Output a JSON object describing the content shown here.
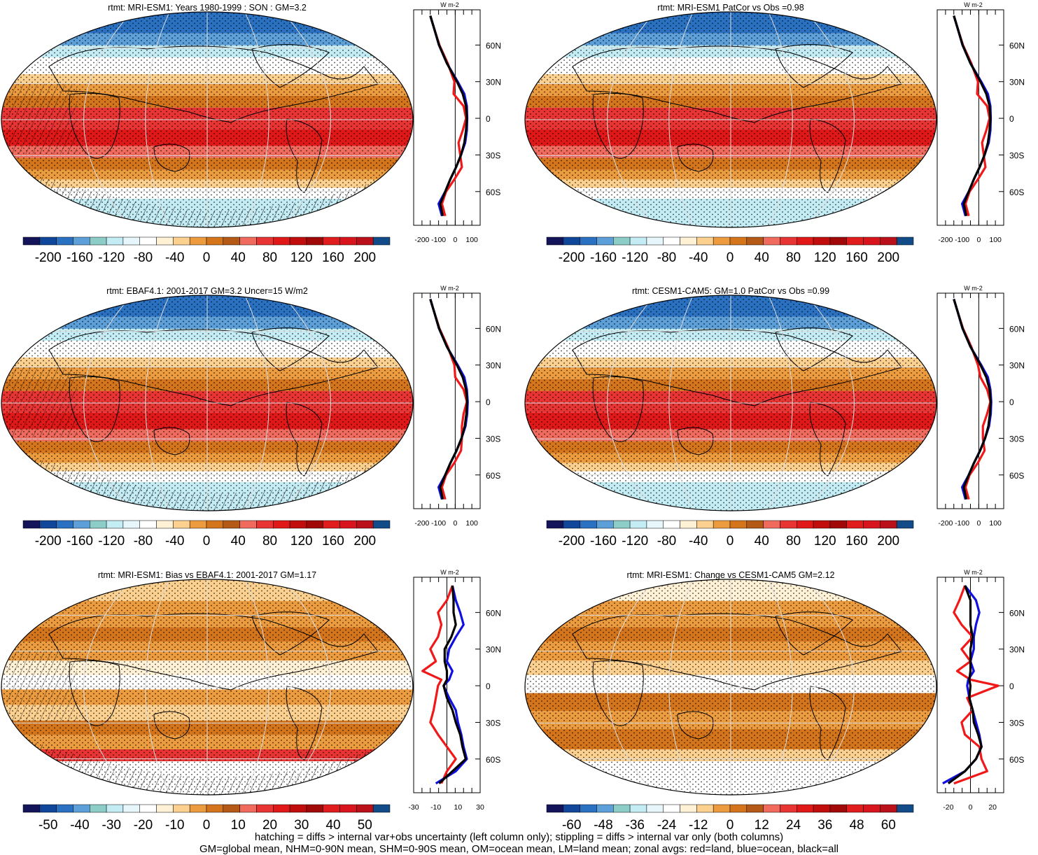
{
  "colorbar_palette": [
    "#14145a",
    "#10479a",
    "#2a71c2",
    "#5c9fd9",
    "#8ccdc7",
    "#c4ecf4",
    "#e6f6fa",
    "#ffffff",
    "#fff1d6",
    "#fcd08f",
    "#ec9c3e",
    "#d4751c",
    "#b45a16",
    "#f06a5e",
    "#e93434",
    "#e11818",
    "#c20d0d",
    "#a10808",
    "#e01c1c",
    "#d8151c",
    "#ba1019",
    "#124c88"
  ],
  "line_colors": {
    "land": "#f01818",
    "ocean": "#1010e0",
    "all": "#000000"
  },
  "footer": {
    "line1": "hatching = diffs > internal var+obs uncertainty (left column only); stippling = diffs > internal var only (both columns)",
    "line2": "GM=global mean, NHM=0-90N mean, SHM=0-90S mean, OM=ocean mean, LM=land mean; zonal avgs: red=land, blue=ocean, black=all"
  },
  "chart_data": [
    {
      "type": "heatmap",
      "id": "p1",
      "title": "rtmt: MRI-ESM1: Years 1980-1999 : SON : GM=3.2",
      "field": "abs",
      "hatch": true,
      "colorbar_ticks": [
        "-200",
        "-160",
        "-120",
        "-80",
        "-40",
        "0",
        "40",
        "80",
        "120",
        "160",
        "200"
      ],
      "zonal": {
        "units": "W m-2",
        "lat_ticks": [
          "60N",
          "30N",
          "0",
          "30S",
          "60S"
        ],
        "x_ticks": [
          "-200",
          "-100",
          "0",
          "100"
        ],
        "xlim": [
          -250,
          150
        ],
        "lat": [
          84,
          75,
          60,
          45,
          30,
          20,
          10,
          0,
          -10,
          -20,
          -30,
          -40,
          -50,
          -60,
          -70,
          -80
        ],
        "series": [
          {
            "name": "land",
            "values": [
              -150,
              -130,
              -95,
              -45,
              -5,
              -10,
              50,
              65,
              45,
              20,
              30,
              40,
              -5,
              -55,
              -80,
              -60
            ]
          },
          {
            "name": "ocean",
            "values": [
              -150,
              -130,
              -98,
              -50,
              15,
              55,
              70,
              72,
              70,
              60,
              35,
              5,
              -30,
              -60,
              -100,
              -80
            ]
          },
          {
            "name": "all",
            "values": [
              -150,
              -130,
              -97,
              -50,
              10,
              45,
              65,
              70,
              65,
              55,
              35,
              5,
              -30,
              -60,
              -90,
              -75
            ]
          }
        ]
      }
    },
    {
      "type": "heatmap",
      "id": "p2",
      "title": "rtmt: MRI-ESM1 PatCor vs Obs =0.98",
      "field": "abs",
      "hatch": false,
      "colorbar_ticks": [
        "-200",
        "-160",
        "-120",
        "-80",
        "-40",
        "0",
        "40",
        "80",
        "120",
        "160",
        "200"
      ],
      "zonal": {
        "units": "W m-2",
        "lat_ticks": [
          "60N",
          "30N",
          "0",
          "30S",
          "60S"
        ],
        "x_ticks": [
          "-200",
          "-100",
          "0",
          "100"
        ],
        "xlim": [
          -250,
          150
        ],
        "lat": [
          84,
          75,
          60,
          45,
          30,
          20,
          10,
          0,
          -10,
          -20,
          -30,
          -40,
          -50,
          -60,
          -70,
          -80
        ],
        "series": [
          {
            "name": "land",
            "values": [
              -150,
              -130,
              -95,
              -45,
              -5,
              -10,
              50,
              65,
              45,
              20,
              30,
              40,
              -5,
              -55,
              -80,
              -60
            ]
          },
          {
            "name": "ocean",
            "values": [
              -150,
              -130,
              -98,
              -50,
              15,
              55,
              70,
              72,
              70,
              60,
              35,
              5,
              -30,
              -60,
              -100,
              -80
            ]
          },
          {
            "name": "all",
            "values": [
              -150,
              -130,
              -97,
              -50,
              10,
              45,
              65,
              70,
              65,
              55,
              35,
              5,
              -30,
              -60,
              -90,
              -75
            ]
          }
        ]
      }
    },
    {
      "type": "heatmap",
      "id": "p3",
      "title": "rtmt: EBAF4.1: 2001-2017 GM=3.2 Uncer=15 W/m2",
      "field": "abs",
      "hatch": true,
      "colorbar_ticks": [
        "-200",
        "-160",
        "-120",
        "-80",
        "-40",
        "0",
        "40",
        "80",
        "120",
        "160",
        "200"
      ],
      "zonal": {
        "units": "W m-2",
        "lat_ticks": [
          "60N",
          "30N",
          "0",
          "30S",
          "60S"
        ],
        "x_ticks": [
          "-200",
          "-100",
          "0",
          "100"
        ],
        "xlim": [
          -250,
          150
        ],
        "lat": [
          84,
          75,
          60,
          45,
          30,
          20,
          10,
          0,
          -10,
          -20,
          -30,
          -40,
          -50,
          -60,
          -70,
          -80
        ],
        "series": [
          {
            "name": "land",
            "values": [
              -150,
              -130,
              -95,
              -45,
              -5,
              0,
              50,
              70,
              50,
              40,
              40,
              35,
              -5,
              -55,
              -80,
              -60
            ]
          },
          {
            "name": "ocean",
            "values": [
              -150,
              -130,
              -98,
              -50,
              15,
              55,
              70,
              75,
              72,
              62,
              38,
              8,
              -28,
              -60,
              -100,
              -80
            ]
          },
          {
            "name": "all",
            "values": [
              -150,
              -130,
              -97,
              -50,
              10,
              45,
              65,
              72,
              67,
              58,
              38,
              8,
              -28,
              -60,
              -90,
              -75
            ]
          }
        ]
      }
    },
    {
      "type": "heatmap",
      "id": "p4",
      "title": "rtmt: CESM1-CAM5: GM=1.0 PatCor vs Obs =0.99",
      "field": "abs",
      "hatch": false,
      "colorbar_ticks": [
        "-200",
        "-160",
        "-120",
        "-80",
        "-40",
        "0",
        "40",
        "80",
        "120",
        "160",
        "200"
      ],
      "zonal": {
        "units": "W m-2",
        "lat_ticks": [
          "60N",
          "30N",
          "0",
          "30S",
          "60S"
        ],
        "x_ticks": [
          "-200",
          "-100",
          "0",
          "100"
        ],
        "xlim": [
          -250,
          150
        ],
        "lat": [
          84,
          75,
          60,
          45,
          30,
          20,
          10,
          0,
          -10,
          -20,
          -30,
          -40,
          -50,
          -60,
          -70,
          -80
        ],
        "series": [
          {
            "name": "land",
            "values": [
              -150,
              -130,
              -95,
              -45,
              -5,
              10,
              50,
              70,
              50,
              25,
              25,
              35,
              -5,
              -55,
              -80,
              -60
            ]
          },
          {
            "name": "ocean",
            "values": [
              -150,
              -130,
              -98,
              -50,
              15,
              55,
              70,
              75,
              72,
              62,
              38,
              8,
              -28,
              -60,
              -100,
              -80
            ]
          },
          {
            "name": "all",
            "values": [
              -150,
              -130,
              -97,
              -50,
              10,
              45,
              65,
              72,
              67,
              58,
              38,
              8,
              -28,
              -60,
              -90,
              -75
            ]
          }
        ]
      }
    },
    {
      "type": "heatmap",
      "id": "p5",
      "title": "rtmt: MRI-ESM1: Bias vs EBAF4.1: 2001-2017  GM=1.17",
      "field": "bias",
      "hatch": true,
      "colorbar_ticks": [
        "-50",
        "-40",
        "-30",
        "-20",
        "-10",
        "0",
        "10",
        "20",
        "30",
        "40",
        "50"
      ],
      "zonal": {
        "units": "W m-2",
        "lat_ticks": [
          "60N",
          "30N",
          "0",
          "30S",
          "60S"
        ],
        "x_ticks": [
          "-30",
          "-10",
          "10",
          "30"
        ],
        "xlim": [
          -30,
          30
        ],
        "lat": [
          82,
          70,
          60,
          50,
          40,
          30,
          20,
          12,
          5,
          0,
          -10,
          -20,
          -30,
          -40,
          -50,
          -60,
          -70,
          -80
        ],
        "series": [
          {
            "name": "land",
            "values": [
              5,
              0,
              -8,
              -5,
              -8,
              -15,
              -10,
              -22,
              -5,
              -8,
              -10,
              -12,
              -15,
              -8,
              0,
              8,
              0,
              -5
            ]
          },
          {
            "name": "ocean",
            "values": [
              5,
              8,
              12,
              15,
              8,
              2,
              0,
              5,
              2,
              -3,
              2,
              8,
              10,
              13,
              15,
              18,
              8,
              -10
            ]
          },
          {
            "name": "all",
            "values": [
              5,
              6,
              6,
              8,
              4,
              -2,
              -2,
              0,
              0,
              -3,
              0,
              5,
              8,
              12,
              14,
              17,
              5,
              -7
            ]
          }
        ]
      }
    },
    {
      "type": "heatmap",
      "id": "p6",
      "title": "rtmt: MRI-ESM1: Change vs CESM1-CAM5 GM=2.12",
      "field": "change",
      "hatch": false,
      "colorbar_ticks": [
        "-60",
        "-48",
        "-36",
        "-24",
        "-12",
        "0",
        "12",
        "24",
        "36",
        "48",
        "60"
      ],
      "zonal": {
        "units": "W m-2",
        "lat_ticks": [
          "60N",
          "30N",
          "0",
          "30S",
          "60S"
        ],
        "x_ticks": [
          "-20",
          "0",
          "20"
        ],
        "xlim": [
          -30,
          30
        ],
        "lat": [
          82,
          70,
          60,
          50,
          40,
          30,
          20,
          12,
          5,
          0,
          -10,
          -20,
          -30,
          -40,
          -50,
          -60,
          -70,
          -80
        ],
        "series": [
          {
            "name": "land",
            "values": [
              -5,
              -10,
              -15,
              -8,
              2,
              -8,
              0,
              -12,
              0,
              25,
              -3,
              2,
              -8,
              -5,
              8,
              10,
              15,
              -15
            ]
          },
          {
            "name": "ocean",
            "values": [
              -5,
              5,
              8,
              5,
              3,
              3,
              0,
              3,
              -2,
              -3,
              -1,
              2,
              5,
              8,
              10,
              5,
              -5,
              -25
            ]
          },
          {
            "name": "all",
            "values": [
              -5,
              0,
              0,
              0,
              2,
              0,
              0,
              0,
              -1,
              0,
              -1,
              2,
              3,
              7,
              10,
              5,
              -5,
              -20
            ]
          }
        ]
      }
    }
  ]
}
